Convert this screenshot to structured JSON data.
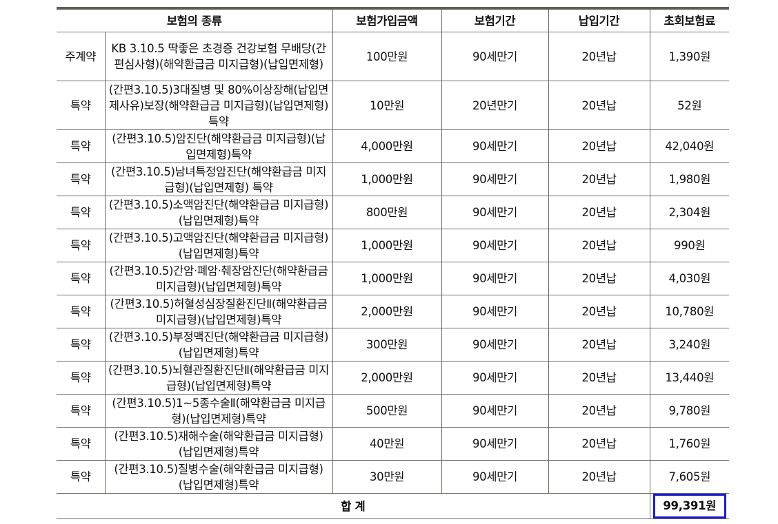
{
  "headers": [
    "보험의 종류",
    "보험가입금액",
    "보험기간",
    "납입기간",
    "초회보험료"
  ],
  "rows": [
    {
      "type": "주계약",
      "name": "KB 3.10.5 딱좋은 초경증 건강보험 무배당(간편심사형)(해약환급금 미지급형)(납입면제형)",
      "amount": "100만원",
      "period": "90세만기",
      "pay": "20년납",
      "premium": "1,390원"
    },
    {
      "type": "특약",
      "name": "(간편3.10.5)3대질병 및 80%이상장해(납입면제사유)보장(해약환급금 미지급형)(납입면제형)특약",
      "amount": "10만원",
      "period": "20년만기",
      "pay": "20년납",
      "premium": "52원"
    },
    {
      "type": "특약",
      "name": "(간편3.10.5)암진단(해약환급금 미지급형)(납입면제형)특약",
      "amount": "4,000만원",
      "period": "90세만기",
      "pay": "20년납",
      "premium": "42,040원"
    },
    {
      "type": "특약",
      "name": "(간편3.10.5)남녀특정암진단(해약환급금 미지급형)(납입면제형) 특약",
      "amount": "1,000만원",
      "period": "90세만기",
      "pay": "20년납",
      "premium": "1,980원"
    },
    {
      "type": "특약",
      "name": "(간편3.10.5)소액암진단(해약환급금 미지급형)(납입면제형)특약",
      "amount": "800만원",
      "period": "90세만기",
      "pay": "20년납",
      "premium": "2,304원"
    },
    {
      "type": "특약",
      "name": "(간편3.10.5)고액암진단(해약환급금 미지급형)(납입면제형)특약",
      "amount": "1,000만원",
      "period": "90세만기",
      "pay": "20년납",
      "premium": "990원"
    },
    {
      "type": "특약",
      "name": "(간편3.10.5)간암·폐암·췌장암진단(해약환급금 미지급형)(납입면제형)특약",
      "amount": "1,000만원",
      "period": "90세만기",
      "pay": "20년납",
      "premium": "4,030원"
    },
    {
      "type": "특약",
      "name": "(간편3.10.5)허혈성심장질환진단Ⅱ(해약환급금 미지급형)(납입면제형)특약",
      "amount": "2,000만원",
      "period": "90세만기",
      "pay": "20년납",
      "premium": "10,780원"
    },
    {
      "type": "특약",
      "name": "(간편3.10.5)부정맥진단(해약환급금 미지급형)(납입면제형)특약",
      "amount": "300만원",
      "period": "90세만기",
      "pay": "20년납",
      "premium": "3,240원"
    },
    {
      "type": "특약",
      "name": "(간편3.10.5)뇌혈관질환진단Ⅱ(해약환급금 미지급형)(납입면제형)특약",
      "amount": "2,000만원",
      "period": "90세만기",
      "pay": "20년납",
      "premium": "13,440원"
    },
    {
      "type": "특약",
      "name": "(간편3.10.5)1~5종수술Ⅱ(해약환급금 미지급형)(납입면제형)특약",
      "amount": "500만원",
      "period": "90세만기",
      "pay": "20년납",
      "premium": "9,780원"
    },
    {
      "type": "특약",
      "name": "(간편3.10.5)재해수술(해약환급금 미지급형)(납입면제형)특약",
      "amount": "40만원",
      "period": "90세만기",
      "pay": "20년납",
      "premium": "1,760원"
    },
    {
      "type": "특약",
      "name": "(간편3.10.5)질병수술(해약환급금 미지급형)(납입면제형)특약",
      "amount": "30만원",
      "period": "90세만기",
      "pay": "20년납",
      "premium": "7,605원"
    }
  ],
  "total": {
    "label": "합 계",
    "value": "99,391원",
    "highlight_color": "#1c1ccf"
  }
}
